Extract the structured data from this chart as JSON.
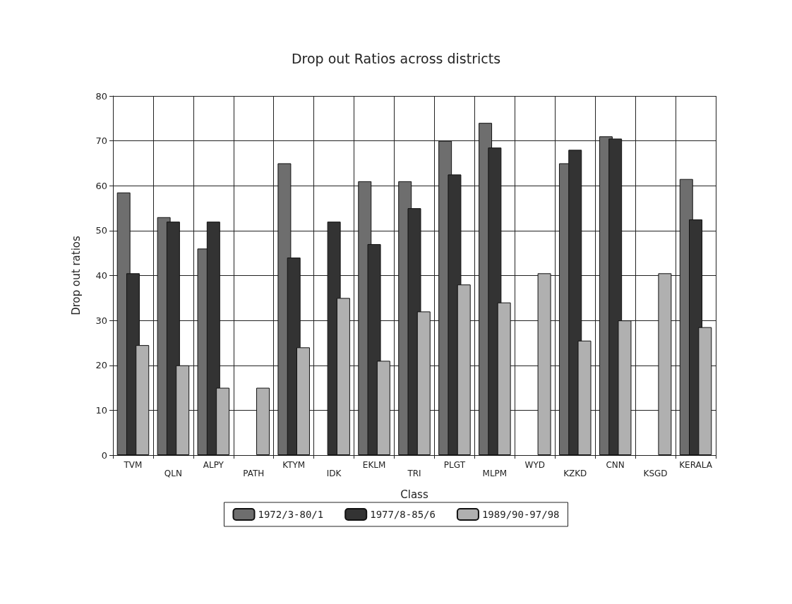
{
  "chart_data": {
    "type": "bar",
    "title": "Drop out Ratios across districts",
    "xlabel": "Class",
    "ylabel": "Drop out ratios",
    "categories": [
      "TVM",
      "QLN",
      "ALPY",
      "PATH",
      "KTYM",
      "IDK",
      "EKLM",
      "TRI",
      "PLGT",
      "MLPM",
      "WYD",
      "KZKD",
      "CNN",
      "KSGD",
      "KERALA"
    ],
    "series": [
      {
        "name": "1972/3-80/1",
        "color": "#6e6e6e",
        "values": [
          58.5,
          53,
          46,
          null,
          65,
          null,
          61,
          61,
          70,
          74,
          null,
          65,
          71,
          null,
          61.5
        ]
      },
      {
        "name": "1977/8-85/6",
        "color": "#333333",
        "values": [
          40.5,
          52,
          52,
          null,
          44,
          52,
          47,
          55,
          62.5,
          68.5,
          null,
          68,
          70.5,
          null,
          52.5
        ]
      },
      {
        "name": "1989/90-97/98",
        "color": "#b0b0b0",
        "values": [
          24.5,
          20,
          15,
          15,
          24,
          35,
          21,
          32,
          38,
          34,
          40.5,
          25.5,
          30,
          40.5,
          28.5
        ]
      }
    ],
    "ylim": [
      0,
      80
    ],
    "yticks": [
      0,
      10,
      20,
      30,
      40,
      50,
      60,
      70,
      80
    ],
    "grid": true,
    "legend": "bottom"
  }
}
